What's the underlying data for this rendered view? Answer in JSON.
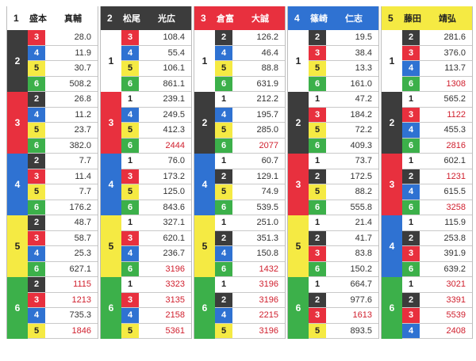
{
  "colors": {
    "1": {
      "bg": "#ffffff",
      "fg": "#222222"
    },
    "2": {
      "bg": "#3c3c3c",
      "fg": "#ffffff"
    },
    "3": {
      "bg": "#e8303e",
      "fg": "#ffffff"
    },
    "4": {
      "bg": "#2f72d2",
      "fg": "#ffffff"
    },
    "5": {
      "bg": "#f5ea43",
      "fg": "#222222"
    },
    "6": {
      "bg": "#3cb04a",
      "fg": "#ffffff"
    },
    "odds_high": "#d01f2d"
  },
  "columns": [
    {
      "boat": "1",
      "name": "盛本　　真輔",
      "groups": [
        {
          "second": "2",
          "rows": [
            {
              "third": "3",
              "odds": "28.0"
            },
            {
              "third": "4",
              "odds": "11.9"
            },
            {
              "third": "5",
              "odds": "30.7"
            },
            {
              "third": "6",
              "odds": "508.2"
            }
          ]
        },
        {
          "second": "3",
          "rows": [
            {
              "third": "2",
              "odds": "26.8"
            },
            {
              "third": "4",
              "odds": "11.2"
            },
            {
              "third": "5",
              "odds": "23.7"
            },
            {
              "third": "6",
              "odds": "382.0"
            }
          ]
        },
        {
          "second": "4",
          "rows": [
            {
              "third": "2",
              "odds": "7.7"
            },
            {
              "third": "3",
              "odds": "11.4"
            },
            {
              "third": "5",
              "odds": "7.7"
            },
            {
              "third": "6",
              "odds": "176.2"
            }
          ]
        },
        {
          "second": "5",
          "rows": [
            {
              "third": "2",
              "odds": "48.7"
            },
            {
              "third": "3",
              "odds": "58.7"
            },
            {
              "third": "4",
              "odds": "25.3"
            },
            {
              "third": "6",
              "odds": "627.1"
            }
          ]
        },
        {
          "second": "6",
          "rows": [
            {
              "third": "2",
              "odds": "1115"
            },
            {
              "third": "3",
              "odds": "1213"
            },
            {
              "third": "4",
              "odds": "735.3"
            },
            {
              "third": "5",
              "odds": "1846"
            }
          ]
        }
      ]
    },
    {
      "boat": "2",
      "name": "松尾　　光広",
      "groups": [
        {
          "second": "1",
          "rows": [
            {
              "third": "3",
              "odds": "108.4"
            },
            {
              "third": "4",
              "odds": "55.4"
            },
            {
              "third": "5",
              "odds": "106.1"
            },
            {
              "third": "6",
              "odds": "861.1"
            }
          ]
        },
        {
          "second": "3",
          "rows": [
            {
              "third": "1",
              "odds": "239.1"
            },
            {
              "third": "4",
              "odds": "249.5"
            },
            {
              "third": "5",
              "odds": "412.3"
            },
            {
              "third": "6",
              "odds": "2444"
            }
          ]
        },
        {
          "second": "4",
          "rows": [
            {
              "third": "1",
              "odds": "76.0"
            },
            {
              "third": "3",
              "odds": "173.2"
            },
            {
              "third": "5",
              "odds": "125.0"
            },
            {
              "third": "6",
              "odds": "843.6"
            }
          ]
        },
        {
          "second": "5",
          "rows": [
            {
              "third": "1",
              "odds": "327.1"
            },
            {
              "third": "3",
              "odds": "620.1"
            },
            {
              "third": "4",
              "odds": "236.7"
            },
            {
              "third": "6",
              "odds": "3196"
            }
          ]
        },
        {
          "second": "6",
          "rows": [
            {
              "third": "1",
              "odds": "3323"
            },
            {
              "third": "3",
              "odds": "3135"
            },
            {
              "third": "4",
              "odds": "2158"
            },
            {
              "third": "5",
              "odds": "5361"
            }
          ]
        }
      ]
    },
    {
      "boat": "3",
      "name": "倉富　　大誠",
      "groups": [
        {
          "second": "1",
          "rows": [
            {
              "third": "2",
              "odds": "126.2"
            },
            {
              "third": "4",
              "odds": "46.4"
            },
            {
              "third": "5",
              "odds": "88.8"
            },
            {
              "third": "6",
              "odds": "631.9"
            }
          ]
        },
        {
          "second": "2",
          "rows": [
            {
              "third": "1",
              "odds": "212.2"
            },
            {
              "third": "4",
              "odds": "195.7"
            },
            {
              "third": "5",
              "odds": "285.0"
            },
            {
              "third": "6",
              "odds": "2077"
            }
          ]
        },
        {
          "second": "4",
          "rows": [
            {
              "third": "1",
              "odds": "60.7"
            },
            {
              "third": "2",
              "odds": "129.1"
            },
            {
              "third": "5",
              "odds": "74.9"
            },
            {
              "third": "6",
              "odds": "539.5"
            }
          ]
        },
        {
          "second": "5",
          "rows": [
            {
              "third": "1",
              "odds": "251.0"
            },
            {
              "third": "2",
              "odds": "351.3"
            },
            {
              "third": "4",
              "odds": "150.8"
            },
            {
              "third": "6",
              "odds": "1432"
            }
          ]
        },
        {
          "second": "6",
          "rows": [
            {
              "third": "1",
              "odds": "3196"
            },
            {
              "third": "2",
              "odds": "3196"
            },
            {
              "third": "4",
              "odds": "2215"
            },
            {
              "third": "5",
              "odds": "3196"
            }
          ]
        }
      ]
    },
    {
      "boat": "4",
      "name": "篠崎　　仁志",
      "groups": [
        {
          "second": "1",
          "rows": [
            {
              "third": "2",
              "odds": "19.5"
            },
            {
              "third": "3",
              "odds": "38.4"
            },
            {
              "third": "5",
              "odds": "13.3"
            },
            {
              "third": "6",
              "odds": "161.0"
            }
          ]
        },
        {
          "second": "2",
          "rows": [
            {
              "third": "1",
              "odds": "47.2"
            },
            {
              "third": "3",
              "odds": "184.2"
            },
            {
              "third": "5",
              "odds": "72.2"
            },
            {
              "third": "6",
              "odds": "409.3"
            }
          ]
        },
        {
          "second": "3",
          "rows": [
            {
              "third": "1",
              "odds": "73.7"
            },
            {
              "third": "2",
              "odds": "172.5"
            },
            {
              "third": "5",
              "odds": "88.2"
            },
            {
              "third": "6",
              "odds": "555.8"
            }
          ]
        },
        {
          "second": "5",
          "rows": [
            {
              "third": "1",
              "odds": "21.4"
            },
            {
              "third": "2",
              "odds": "41.7"
            },
            {
              "third": "3",
              "odds": "83.8"
            },
            {
              "third": "6",
              "odds": "150.2"
            }
          ]
        },
        {
          "second": "6",
          "rows": [
            {
              "third": "1",
              "odds": "664.7"
            },
            {
              "third": "2",
              "odds": "977.6"
            },
            {
              "third": "3",
              "odds": "1613"
            },
            {
              "third": "5",
              "odds": "893.5"
            }
          ]
        }
      ]
    },
    {
      "boat": "5",
      "name": "藤田　　靖弘",
      "groups": [
        {
          "second": "1",
          "rows": [
            {
              "third": "2",
              "odds": "281.6"
            },
            {
              "third": "3",
              "odds": "376.0"
            },
            {
              "third": "4",
              "odds": "113.7"
            },
            {
              "third": "6",
              "odds": "1308"
            }
          ]
        },
        {
          "second": "2",
          "rows": [
            {
              "third": "1",
              "odds": "565.2"
            },
            {
              "third": "3",
              "odds": "1122"
            },
            {
              "third": "4",
              "odds": "455.3"
            },
            {
              "third": "6",
              "odds": "2816"
            }
          ]
        },
        {
          "second": "3",
          "rows": [
            {
              "third": "1",
              "odds": "602.1"
            },
            {
              "third": "2",
              "odds": "1231"
            },
            {
              "third": "4",
              "odds": "615.5"
            },
            {
              "third": "6",
              "odds": "3258"
            }
          ]
        },
        {
          "second": "4",
          "rows": [
            {
              "third": "1",
              "odds": "115.9"
            },
            {
              "third": "2",
              "odds": "253.8"
            },
            {
              "third": "3",
              "odds": "391.9"
            },
            {
              "third": "6",
              "odds": "639.2"
            }
          ]
        },
        {
          "second": "6",
          "rows": [
            {
              "third": "1",
              "odds": "3021"
            },
            {
              "third": "2",
              "odds": "3391"
            },
            {
              "third": "3",
              "odds": "5539"
            },
            {
              "third": "4",
              "odds": "2408"
            }
          ]
        }
      ]
    }
  ]
}
